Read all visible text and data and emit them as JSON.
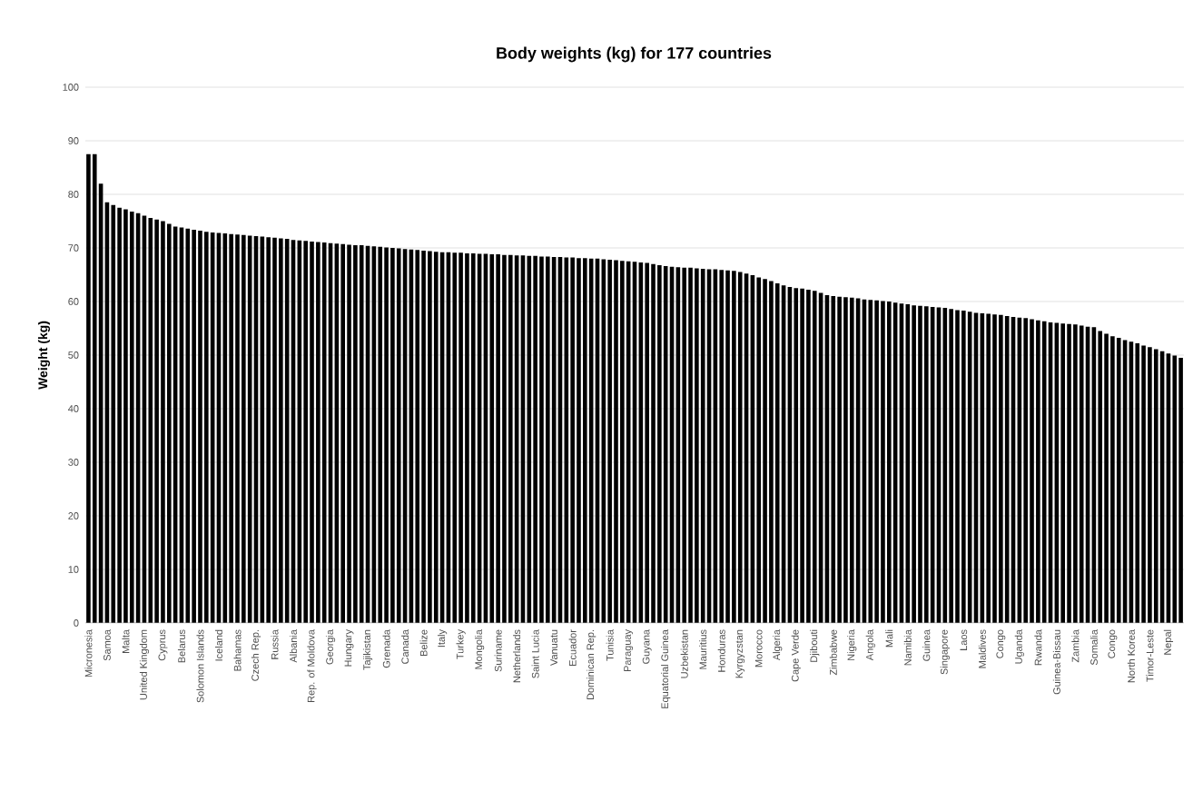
{
  "chart_data": {
    "type": "bar",
    "title": "Body weights (kg) for 177 countries",
    "ylabel": "Weight (kg)",
    "categories": [
      "Micronesia",
      null,
      null,
      "Samoa",
      null,
      null,
      "Malta",
      null,
      null,
      "United Kingdom",
      null,
      null,
      "Cyprus",
      null,
      null,
      "Belarus",
      null,
      null,
      "Solomon Islands",
      null,
      null,
      "Iceland",
      null,
      null,
      "Bahamas",
      null,
      null,
      "Czech Rep.",
      null,
      null,
      "Russia",
      null,
      null,
      "Albania",
      null,
      null,
      "Rep. of Moldova",
      null,
      null,
      "Georgia",
      null,
      null,
      "Hungary",
      null,
      null,
      "Tajikistan",
      null,
      null,
      "Grenada",
      null,
      null,
      "Canada",
      null,
      null,
      "Belize",
      null,
      null,
      "Italy",
      null,
      null,
      "Turkey",
      null,
      null,
      "Mongolia",
      null,
      null,
      "Suriname",
      null,
      null,
      "Netherlands",
      null,
      null,
      "Saint Lucia",
      null,
      null,
      "Vanuatu",
      null,
      null,
      "Ecuador",
      null,
      null,
      "Dominican Rep.",
      null,
      null,
      "Tunisia",
      null,
      null,
      "Paraguay",
      null,
      null,
      "Guyana",
      null,
      null,
      "Equatorial Guinea",
      null,
      null,
      "Uzbekistan",
      null,
      null,
      "Mauritius",
      null,
      null,
      "Honduras",
      null,
      null,
      "Kyrgyzstan",
      null,
      null,
      "Morocco",
      null,
      null,
      "Algeria",
      null,
      null,
      "Cape Verde",
      null,
      null,
      "Djibouti",
      null,
      null,
      "Zimbabwe",
      null,
      null,
      "Nigeria",
      null,
      null,
      "Angola",
      null,
      null,
      "Mali",
      null,
      null,
      "Namibia",
      null,
      null,
      "Guinea",
      null,
      null,
      "Singapore",
      null,
      null,
      "Laos",
      null,
      null,
      "Maldives",
      null,
      null,
      "Congo",
      null,
      null,
      "Uganda",
      null,
      null,
      "Rwanda",
      null,
      null,
      "Guinea-Bissau",
      null,
      null,
      "Zambia",
      null,
      null,
      "Somalia",
      null,
      null,
      "Congo",
      null,
      null,
      "North Korea",
      null,
      null,
      "Timor-Leste",
      null,
      null,
      "Nepal",
      null,
      null
    ],
    "values": [
      87.5,
      87.5,
      82.0,
      78.5,
      78.0,
      77.5,
      77.2,
      76.8,
      76.5,
      76.0,
      75.6,
      75.3,
      75.0,
      74.5,
      74.0,
      73.8,
      73.6,
      73.4,
      73.2,
      73.0,
      72.9,
      72.8,
      72.7,
      72.6,
      72.5,
      72.4,
      72.3,
      72.2,
      72.1,
      72.0,
      71.9,
      71.8,
      71.7,
      71.5,
      71.4,
      71.3,
      71.2,
      71.1,
      71.0,
      70.9,
      70.8,
      70.7,
      70.6,
      70.5,
      70.5,
      70.4,
      70.3,
      70.2,
      70.1,
      70.0,
      69.9,
      69.8,
      69.7,
      69.6,
      69.5,
      69.4,
      69.3,
      69.2,
      69.2,
      69.1,
      69.1,
      69.0,
      69.0,
      68.9,
      68.9,
      68.8,
      68.8,
      68.7,
      68.7,
      68.6,
      68.6,
      68.5,
      68.5,
      68.4,
      68.4,
      68.3,
      68.3,
      68.2,
      68.2,
      68.1,
      68.1,
      68.0,
      68.0,
      67.9,
      67.8,
      67.7,
      67.6,
      67.5,
      67.4,
      67.3,
      67.2,
      67.0,
      66.8,
      66.6,
      66.5,
      66.4,
      66.3,
      66.3,
      66.2,
      66.1,
      66.0,
      66.0,
      65.9,
      65.8,
      65.7,
      65.5,
      65.2,
      64.9,
      64.5,
      64.2,
      63.8,
      63.4,
      63.0,
      62.7,
      62.5,
      62.4,
      62.2,
      62.0,
      61.6,
      61.2,
      61.0,
      60.9,
      60.8,
      60.7,
      60.6,
      60.4,
      60.3,
      60.2,
      60.1,
      60.0,
      59.8,
      59.6,
      59.5,
      59.3,
      59.2,
      59.1,
      59.0,
      58.9,
      58.8,
      58.6,
      58.4,
      58.3,
      58.1,
      57.9,
      57.8,
      57.7,
      57.6,
      57.5,
      57.3,
      57.1,
      57.0,
      56.9,
      56.7,
      56.5,
      56.3,
      56.1,
      56.0,
      55.9,
      55.8,
      55.7,
      55.5,
      55.3,
      55.2,
      54.5,
      54.0,
      53.5,
      53.2,
      52.8,
      52.5,
      52.2,
      51.8,
      51.5,
      51.1,
      50.7,
      50.3,
      49.9,
      49.5
    ],
    "color": "#000000",
    "ylim": [
      0,
      100
    ],
    "yticks": [
      0,
      10,
      20,
      30,
      40,
      50,
      60,
      70,
      80,
      90,
      100
    ],
    "grid": "y"
  }
}
